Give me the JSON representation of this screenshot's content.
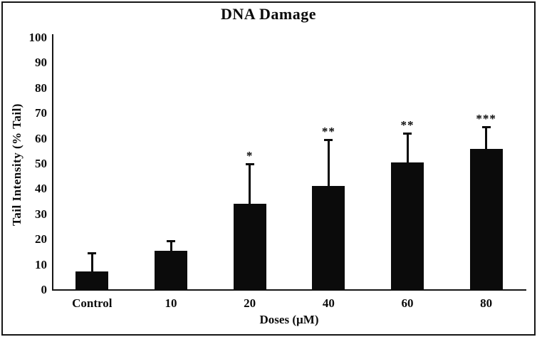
{
  "figure": {
    "title": "DNA Damage",
    "background": "#ffffff",
    "border_color": "#161616"
  },
  "chart_data": {
    "type": "bar",
    "title": "DNA Damage",
    "xlabel": "Doses (µM)",
    "ylabel": "Tail Intensity (% Tail)",
    "categories": [
      "Control",
      "10",
      "20",
      "40",
      "60",
      "80"
    ],
    "values": [
      7.4,
      15.4,
      34.3,
      41.2,
      50.7,
      55.9
    ],
    "errors_upper": [
      7.2,
      4.1,
      15.8,
      18.5,
      11.5,
      8.7
    ],
    "significance": [
      "",
      "",
      "*",
      "**",
      "**",
      "***"
    ],
    "ylim": [
      0,
      100
    ],
    "yticks": [
      0,
      10,
      20,
      30,
      40,
      50,
      60,
      70,
      80,
      90,
      100
    ],
    "bar_color": "#0b0b0b",
    "axis_color": "#161616",
    "grid": false,
    "legend": false
  }
}
